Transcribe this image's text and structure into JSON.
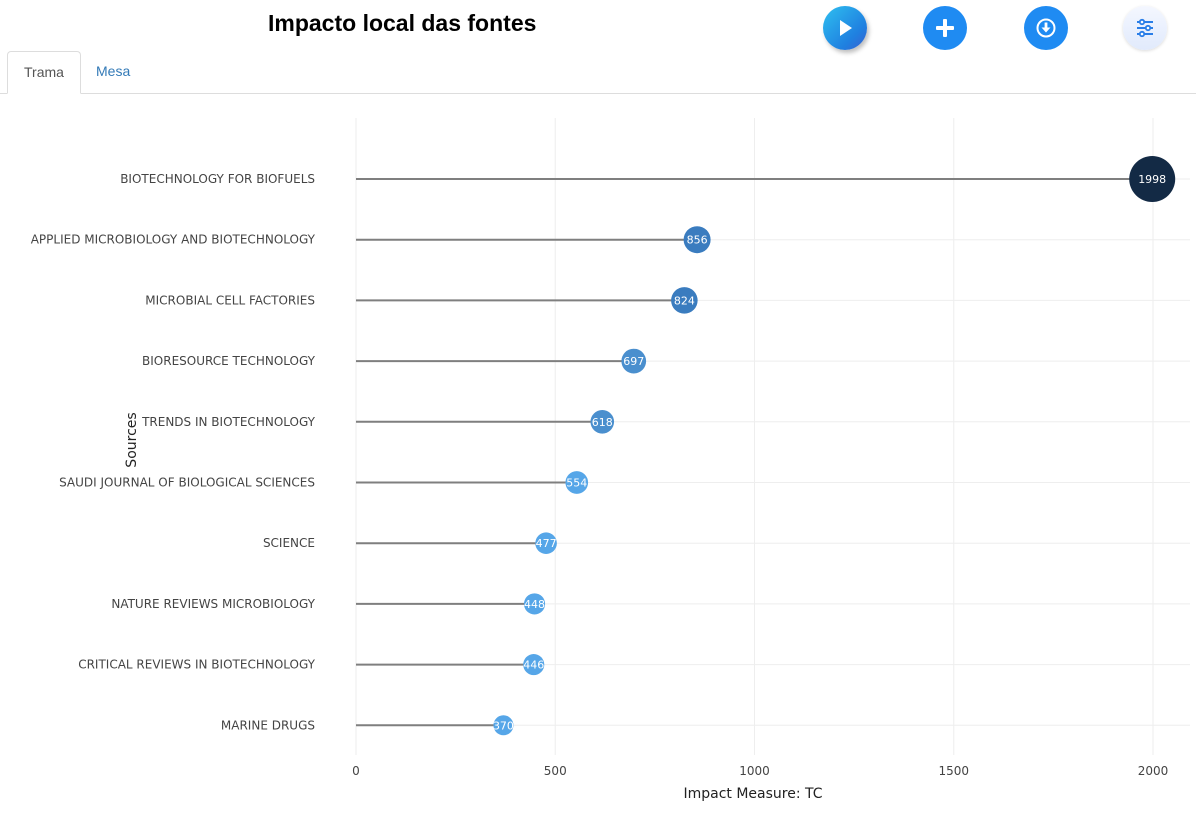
{
  "header": {
    "title": "Impacto local das fontes"
  },
  "toolbar": {
    "icons": [
      "play-icon",
      "plus-icon",
      "download-icon",
      "sliders-icon"
    ]
  },
  "tabs": [
    {
      "label": "Trama",
      "active": true
    },
    {
      "label": "Mesa",
      "active": false
    }
  ],
  "colors": {
    "dot_max": "#132a45",
    "dot_high": "#3a7cbf",
    "dot_low": "#56a6e8",
    "stem": "#7f7f7f",
    "grid": "#eeeeee",
    "tab_link": "#337ab7",
    "button_blue": "#1f8bf2"
  },
  "chart_data": {
    "type": "lollipop",
    "xlabel": "Impact Measure: TC",
    "ylabel": "Sources",
    "xlim": [
      0,
      2100
    ],
    "xticks": [
      0,
      500,
      1000,
      1500,
      2000
    ],
    "grid": true,
    "categories": [
      "BIOTECHNOLOGY FOR BIOFUELS",
      "APPLIED MICROBIOLOGY AND BIOTECHNOLOGY",
      "MICROBIAL CELL FACTORIES",
      "BIORESOURCE TECHNOLOGY",
      "TRENDS IN BIOTECHNOLOGY",
      "SAUDI JOURNAL OF BIOLOGICAL SCIENCES",
      "SCIENCE",
      "NATURE REVIEWS MICROBIOLOGY",
      "CRITICAL REVIEWS IN BIOTECHNOLOGY",
      "MARINE DRUGS"
    ],
    "values": [
      1998,
      856,
      824,
      697,
      618,
      554,
      477,
      448,
      446,
      370
    ]
  }
}
